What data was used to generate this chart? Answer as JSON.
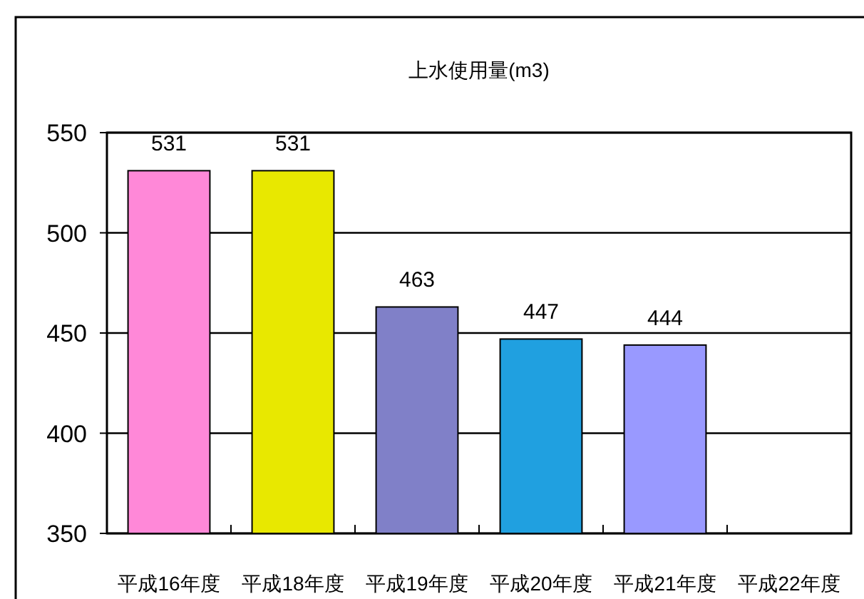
{
  "chart_data": {
    "type": "bar",
    "title": "上水使用量(m3)",
    "categories": [
      "平成16年度",
      "平成18年度",
      "平成19年度",
      "平成20年度",
      "平成21年度",
      "平成22年度"
    ],
    "values": [
      531,
      531,
      463,
      447,
      444,
      null
    ],
    "colors": [
      "#ff88d8",
      "#e8e800",
      "#8080c8",
      "#20a0e0",
      "#9999ff",
      null
    ],
    "ylim": [
      350,
      550
    ],
    "yticks": [
      350,
      400,
      450,
      500,
      550
    ],
    "grid": "y",
    "data_labels": true
  }
}
